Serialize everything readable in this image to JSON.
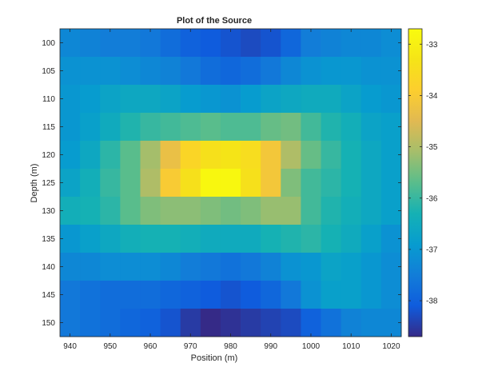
{
  "chart_data": {
    "type": "heatmap",
    "title": "Plot of the Source",
    "xlabel": "Position (m)",
    "ylabel": "Depth (m)",
    "x_centers": [
      940,
      945,
      950,
      955,
      960,
      965,
      970,
      975,
      980,
      985,
      990,
      995,
      1000,
      1005,
      1010,
      1015,
      1020
    ],
    "y_centers": [
      100,
      105,
      110,
      115,
      120,
      125,
      130,
      135,
      140,
      145,
      150
    ],
    "xlim": [
      937.5,
      1022.5
    ],
    "ylim": [
      97.5,
      152.5
    ],
    "y_direction": "reverse",
    "x_ticks": [
      940,
      950,
      960,
      970,
      980,
      990,
      1000,
      1010,
      1020
    ],
    "y_ticks": [
      100,
      105,
      110,
      115,
      120,
      125,
      130,
      135,
      140,
      145,
      150
    ],
    "colorbar": {
      "label": "",
      "range": [
        -38.7,
        -32.7
      ],
      "ticks": [
        -38,
        -37,
        -36,
        -35,
        -34,
        -33
      ],
      "placement": "right"
    },
    "colormap": "parula",
    "grid": false,
    "values": [
      [
        -37.3,
        -37.4,
        -37.5,
        -37.5,
        -37.6,
        -37.8,
        -38.0,
        -38.1,
        -38.2,
        -38.3,
        -38.2,
        -37.9,
        -37.5,
        -37.4,
        -37.3,
        -37.3,
        -37.2
      ],
      [
        -37.1,
        -37.1,
        -37.1,
        -37.2,
        -37.3,
        -37.4,
        -37.6,
        -37.8,
        -37.9,
        -37.8,
        -37.6,
        -37.3,
        -37.1,
        -37.0,
        -37.0,
        -37.1,
        -37.1
      ],
      [
        -37.0,
        -36.9,
        -36.7,
        -36.6,
        -36.6,
        -36.7,
        -36.9,
        -37.0,
        -37.1,
        -36.9,
        -36.7,
        -36.6,
        -36.5,
        -36.5,
        -36.7,
        -36.9,
        -37.0
      ],
      [
        -37.0,
        -36.8,
        -36.5,
        -36.2,
        -36.0,
        -35.9,
        -35.8,
        -35.7,
        -35.8,
        -35.8,
        -35.6,
        -35.5,
        -35.9,
        -36.2,
        -36.4,
        -36.7,
        -36.8
      ],
      [
        -36.9,
        -36.6,
        -36.1,
        -35.7,
        -35.1,
        -34.3,
        -33.7,
        -33.4,
        -33.3,
        -33.5,
        -34.1,
        -35.0,
        -35.6,
        -36.0,
        -36.3,
        -36.6,
        -36.8
      ],
      [
        -36.7,
        -36.4,
        -36.0,
        -35.7,
        -35.0,
        -34.0,
        -33.4,
        -32.8,
        -32.8,
        -33.4,
        -34.1,
        -35.4,
        -35.9,
        -36.1,
        -36.3,
        -36.6,
        -36.8
      ],
      [
        -36.4,
        -36.3,
        -36.1,
        -35.7,
        -35.4,
        -35.3,
        -35.3,
        -35.4,
        -35.5,
        -35.4,
        -35.2,
        -35.2,
        -35.9,
        -36.2,
        -36.4,
        -36.6,
        -36.8
      ],
      [
        -37.0,
        -36.8,
        -36.6,
        -36.4,
        -36.3,
        -36.3,
        -36.4,
        -36.5,
        -36.5,
        -36.5,
        -36.3,
        -36.2,
        -36.1,
        -36.3,
        -36.5,
        -36.8,
        -37.1
      ],
      [
        -37.3,
        -37.3,
        -37.2,
        -37.2,
        -37.2,
        -37.3,
        -37.5,
        -37.6,
        -37.7,
        -37.6,
        -37.4,
        -37.1,
        -37.0,
        -36.7,
        -36.8,
        -37.0,
        -37.2
      ],
      [
        -37.6,
        -37.7,
        -37.8,
        -37.8,
        -37.8,
        -37.9,
        -38.0,
        -38.1,
        -38.2,
        -38.1,
        -37.9,
        -37.6,
        -37.1,
        -36.8,
        -36.8,
        -37.0,
        -37.2
      ],
      [
        -37.6,
        -37.7,
        -37.8,
        -37.9,
        -38.0,
        -38.2,
        -38.5,
        -38.7,
        -38.6,
        -38.5,
        -38.4,
        -38.3,
        -38.0,
        -37.7,
        -37.4,
        -37.3,
        -37.3
      ]
    ]
  }
}
